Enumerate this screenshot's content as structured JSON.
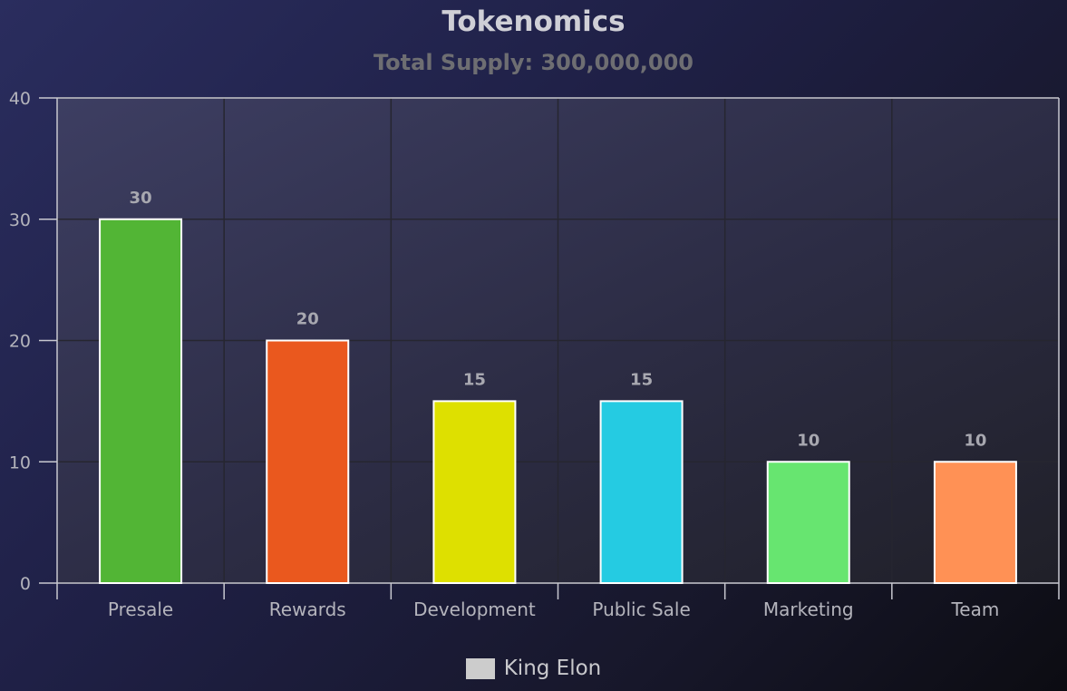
{
  "chart_data": {
    "type": "bar",
    "title": "Tokenomics",
    "subtitle": "Total Supply: 300,000,000",
    "categories": [
      "Presale",
      "Rewards",
      "Development",
      "Public Sale",
      "Marketing",
      "Team"
    ],
    "series": [
      {
        "name": "King Elon",
        "values": [
          30,
          20,
          15,
          15,
          10,
          10
        ]
      }
    ],
    "bar_colors": [
      "#52b535",
      "#ea581e",
      "#dee000",
      "#25cbe2",
      "#67e570",
      "#ff9155"
    ],
    "data_labels": [
      "30",
      "20",
      "15",
      "15",
      "10",
      "10"
    ],
    "ylim": [
      0,
      40
    ],
    "yticks": [
      0,
      10,
      20,
      30,
      40
    ],
    "xlabel": "",
    "ylabel": "",
    "grid": true,
    "legend_position": "bottom-center"
  }
}
